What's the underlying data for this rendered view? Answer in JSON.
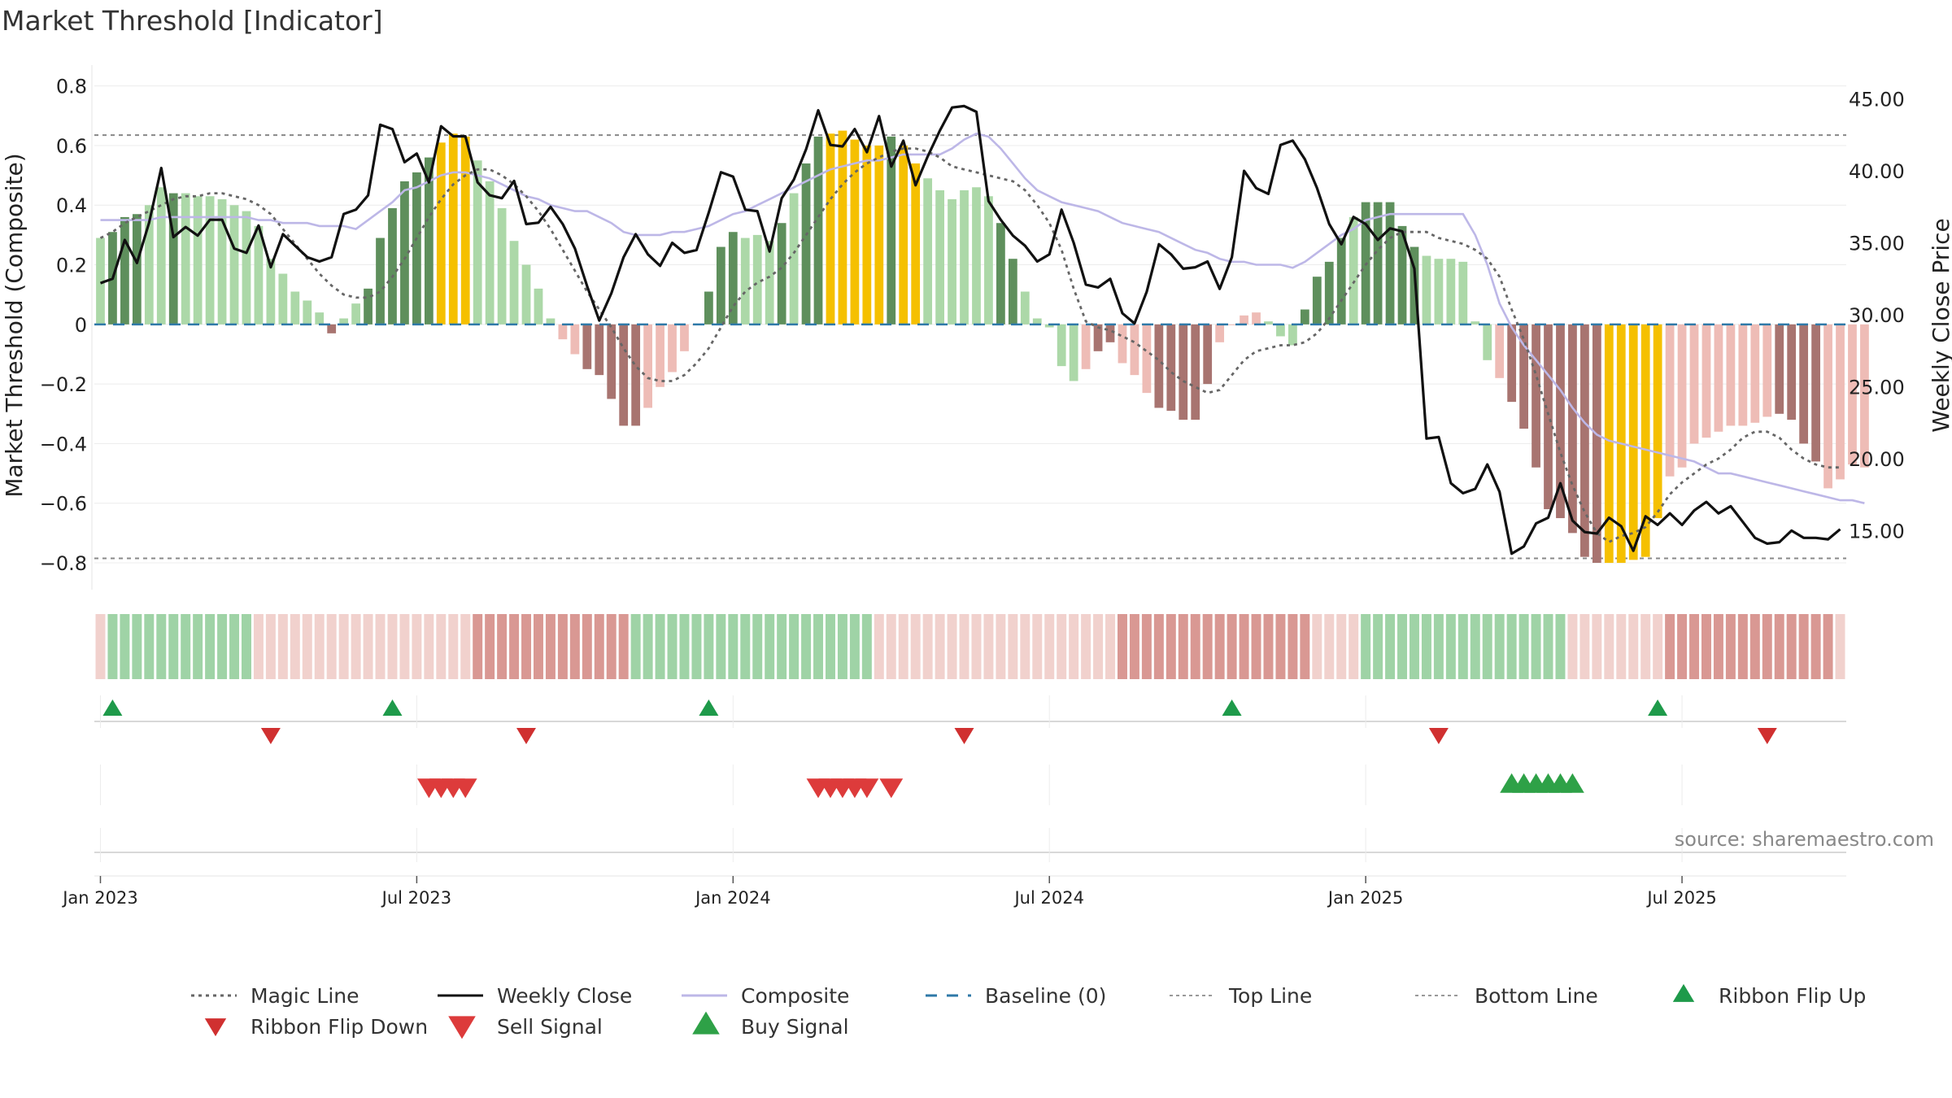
{
  "chart_data": {
    "type": "bar",
    "title": "Market Threshold [Indicator]",
    "ylabel_left": "Market Threshold (Composite)",
    "ylabel_right": "Weekly Close Price",
    "ylim_left": [
      -0.89,
      0.87
    ],
    "ylim_right": [
      10.9,
      47.35
    ],
    "yticks_left": [
      {
        "v": 0.8,
        "label": "0.8"
      },
      {
        "v": 0.6,
        "label": "0.6"
      },
      {
        "v": 0.4,
        "label": "0.4"
      },
      {
        "v": 0.2,
        "label": "0.2"
      },
      {
        "v": 0,
        "label": "0"
      },
      {
        "v": -0.2,
        "label": "−0.2"
      },
      {
        "v": -0.4,
        "label": "−0.4"
      },
      {
        "v": -0.6,
        "label": "−0.6"
      },
      {
        "v": -0.8,
        "label": "−0.8"
      }
    ],
    "yticks_right": [
      {
        "v": 45,
        "label": "45.00"
      },
      {
        "v": 40,
        "label": "40.00"
      },
      {
        "v": 35,
        "label": "35.00"
      },
      {
        "v": 30,
        "label": "30.00"
      },
      {
        "v": 25,
        "label": "25.00"
      },
      {
        "v": 20,
        "label": "20.00"
      },
      {
        "v": 15,
        "label": "15.00"
      }
    ],
    "x_ticks": [
      {
        "week": 1,
        "label": "Jan 2023"
      },
      {
        "week": 27,
        "label": "Jul 2023"
      },
      {
        "week": 53,
        "label": "Jan 2024"
      },
      {
        "week": 79,
        "label": "Jul 2024"
      },
      {
        "week": 105,
        "label": "Jan 2025"
      },
      {
        "week": 131,
        "label": "Jul 2025"
      }
    ],
    "weeks": 144,
    "top_line": 0.635,
    "bottom_line": -0.785,
    "composite_values": [
      0.29,
      0.31,
      0.36,
      0.37,
      0.4,
      0.46,
      0.44,
      0.44,
      0.43,
      0.43,
      0.42,
      0.4,
      0.38,
      0.33,
      0.22,
      0.17,
      0.11,
      0.08,
      0.04,
      -0.03,
      0.02,
      0.07,
      0.12,
      0.29,
      0.39,
      0.48,
      0.51,
      0.56,
      0.61,
      0.64,
      0.63,
      0.55,
      0.48,
      0.39,
      0.28,
      0.2,
      0.12,
      0.02,
      -0.05,
      -0.1,
      -0.15,
      -0.17,
      -0.25,
      -0.34,
      -0.34,
      -0.28,
      -0.21,
      -0.16,
      -0.09,
      0,
      0.11,
      0.26,
      0.31,
      0.29,
      0.3,
      0.28,
      0.34,
      0.44,
      0.54,
      0.63,
      0.64,
      0.65,
      0.62,
      0.6,
      0.6,
      0.63,
      0.6,
      0.54,
      0.49,
      0.45,
      0.42,
      0.45,
      0.46,
      0.43,
      0.34,
      0.22,
      0.11,
      0.02,
      -0.01,
      -0.14,
      -0.19,
      -0.15,
      -0.09,
      -0.06,
      -0.13,
      -0.17,
      -0.23,
      -0.28,
      -0.29,
      -0.32,
      -0.32,
      -0.2,
      -0.06,
      0,
      0.03,
      0.04,
      0.01,
      -0.04,
      -0.07,
      0.05,
      0.16,
      0.21,
      0.29,
      0.36,
      0.41,
      0.41,
      0.41,
      0.33,
      0.26,
      0.23,
      0.22,
      0.22,
      0.21,
      0.01,
      -0.12,
      -0.18,
      -0.26,
      -0.35,
      -0.48,
      -0.62,
      -0.65,
      -0.7,
      -0.78,
      -0.8,
      -0.8,
      -0.8,
      -0.79,
      -0.78,
      -0.65,
      -0.51,
      -0.48,
      -0.4,
      -0.38,
      -0.36,
      -0.34,
      -0.34,
      -0.33,
      -0.31,
      -0.3,
      -0.32,
      -0.4,
      -0.46,
      -0.55,
      -0.52,
      -0.47,
      -0.48
    ],
    "bar_category_codes": "LDDDLLDLLLLLLLLLLLLRLLDDDDDDYYYLLLLLLLWWRRRRRWWWWWDDDLLLDLDDYYYYYDYYLLLLLLDDLLLLLWRRWWWRRRRRWWWWLLLDDDDLDDDDDLLLLLLWRRRRRRRRYYYYYWWWWWWWWWRRRRWWWWRWWW",
    "bar_category_legend": {
      "D": "dark green",
      "L": "light green",
      "R": "dark red",
      "W": "light red",
      "Y": "gold"
    },
    "series": [
      {
        "name": "Weekly Close",
        "axis": "right",
        "values": [
          32.2,
          32.5,
          35.2,
          33.6,
          36.4,
          40.2,
          35.4,
          36.1,
          35.5,
          36.6,
          36.6,
          34.6,
          34.3,
          36.2,
          33.3,
          35.6,
          34.8,
          34,
          33.7,
          34,
          37,
          37.3,
          38.3,
          43.2,
          42.9,
          40.6,
          41.2,
          39.2,
          43.1,
          42.4,
          42.4,
          39.2,
          38.3,
          38.1,
          39.3,
          36.3,
          36.4,
          37.5,
          36.3,
          34.6,
          32,
          29.6,
          31.5,
          34,
          35.6,
          34.2,
          33.4,
          35,
          34.3,
          34.5,
          37.1,
          39.9,
          39.6,
          37.3,
          37.2,
          34.4,
          38.1,
          39.4,
          41.5,
          44.2,
          41.8,
          41.7,
          42.9,
          41.3,
          43.8,
          40.3,
          42.1,
          39,
          41,
          42.8,
          44.4,
          44.5,
          44.1,
          37.9,
          36.6,
          35.5,
          34.8,
          33.7,
          34.2,
          37.3,
          35,
          32.1,
          31.9,
          32.5,
          30.1,
          29.4,
          31.6,
          34.9,
          34.2,
          33.2,
          33.3,
          33.7,
          31.8,
          34,
          40,
          38.8,
          38.4,
          41.8,
          42.1,
          40.8,
          38.8,
          36.3,
          34.9,
          36.8,
          36.3,
          35.2,
          36,
          35.8,
          33.2,
          21.4,
          21.5,
          18.3,
          17.6,
          17.9,
          19.6,
          17.7,
          13.4,
          13.9,
          15.5,
          15.9,
          18.3,
          15.7,
          14.9,
          14.8,
          15.9,
          15.3,
          13.6,
          16,
          15.4,
          16.2,
          15.4,
          16.4,
          17,
          16.2,
          16.7,
          15.6,
          14.5,
          14.1,
          14.2,
          15,
          14.5,
          14.5,
          14.4,
          15.1
        ],
        "axis_note": "week index 1..144 maps to the x axis ticks"
      },
      {
        "name": "Composite",
        "axis": "left",
        "values": [
          0.35,
          0.35,
          0.35,
          0.35,
          0.35,
          0.36,
          0.36,
          0.36,
          0.36,
          0.36,
          0.36,
          0.36,
          0.36,
          0.35,
          0.35,
          0.34,
          0.34,
          0.34,
          0.33,
          0.33,
          0.33,
          0.32,
          0.35,
          0.38,
          0.41,
          0.45,
          0.46,
          0.48,
          0.5,
          0.51,
          0.51,
          0.5,
          0.49,
          0.47,
          0.45,
          0.43,
          0.42,
          0.4,
          0.39,
          0.38,
          0.38,
          0.36,
          0.34,
          0.31,
          0.3,
          0.3,
          0.3,
          0.31,
          0.31,
          0.32,
          0.33,
          0.35,
          0.37,
          0.38,
          0.4,
          0.42,
          0.44,
          0.46,
          0.48,
          0.5,
          0.52,
          0.53,
          0.54,
          0.55,
          0.55,
          0.56,
          0.57,
          0.57,
          0.57,
          0.57,
          0.59,
          0.62,
          0.64,
          0.63,
          0.59,
          0.54,
          0.49,
          0.45,
          0.43,
          0.41,
          0.4,
          0.39,
          0.38,
          0.36,
          0.34,
          0.33,
          0.32,
          0.31,
          0.29,
          0.27,
          0.25,
          0.24,
          0.22,
          0.21,
          0.21,
          0.2,
          0.2,
          0.2,
          0.19,
          0.21,
          0.24,
          0.27,
          0.3,
          0.32,
          0.35,
          0.36,
          0.37,
          0.37,
          0.37,
          0.37,
          0.37,
          0.37,
          0.37,
          0.3,
          0.2,
          0.07,
          -0.01,
          -0.07,
          -0.12,
          -0.17,
          -0.22,
          -0.28,
          -0.33,
          -0.37,
          -0.39,
          -0.4,
          -0.41,
          -0.42,
          -0.43,
          -0.44,
          -0.45,
          -0.46,
          -0.48,
          -0.5,
          -0.5,
          -0.51,
          -0.52,
          -0.53,
          -0.54,
          -0.55,
          -0.56,
          -0.57,
          -0.58,
          -0.59,
          -0.59,
          -0.6
        ]
      },
      {
        "name": "Magic Line",
        "axis": "left",
        "values": [
          0.29,
          0.31,
          0.34,
          0.36,
          0.38,
          0.4,
          0.42,
          0.43,
          0.43,
          0.44,
          0.44,
          0.43,
          0.42,
          0.4,
          0.37,
          0.32,
          0.27,
          0.22,
          0.17,
          0.13,
          0.1,
          0.09,
          0.09,
          0.11,
          0.16,
          0.22,
          0.29,
          0.36,
          0.42,
          0.47,
          0.5,
          0.52,
          0.52,
          0.5,
          0.47,
          0.43,
          0.38,
          0.32,
          0.25,
          0.18,
          0.11,
          0.05,
          -0.01,
          -0.08,
          -0.14,
          -0.18,
          -0.19,
          -0.19,
          -0.17,
          -0.13,
          -0.08,
          -0.01,
          0.06,
          0.11,
          0.14,
          0.16,
          0.19,
          0.24,
          0.3,
          0.36,
          0.42,
          0.47,
          0.51,
          0.54,
          0.56,
          0.58,
          0.59,
          0.59,
          0.58,
          0.56,
          0.53,
          0.52,
          0.51,
          0.5,
          0.49,
          0.48,
          0.45,
          0.4,
          0.34,
          0.25,
          0.12,
          0.01,
          -0.01,
          -0.02,
          -0.04,
          -0.06,
          -0.09,
          -0.12,
          -0.16,
          -0.19,
          -0.21,
          -0.23,
          -0.22,
          -0.17,
          -0.12,
          -0.09,
          -0.08,
          -0.07,
          -0.07,
          -0.06,
          -0.03,
          0.02,
          0.08,
          0.14,
          0.2,
          0.25,
          0.29,
          0.31,
          0.31,
          0.31,
          0.29,
          0.28,
          0.27,
          0.25,
          0.22,
          0.16,
          0.05,
          -0.05,
          -0.17,
          -0.3,
          -0.43,
          -0.54,
          -0.63,
          -0.7,
          -0.73,
          -0.71,
          -0.7,
          -0.68,
          -0.63,
          -0.57,
          -0.53,
          -0.5,
          -0.47,
          -0.45,
          -0.42,
          -0.38,
          -0.36,
          -0.36,
          -0.38,
          -0.42,
          -0.45,
          -0.47,
          -0.48,
          -0.48
        ]
      },
      {
        "name": "Baseline (0)",
        "axis": "left",
        "values": [
          0
        ]
      }
    ],
    "ribbon_codes": "WLLLLLLLLLLLLWWWWWWWWWWWWWWWWWWRRRRRRRRRRRRRLLLLLLLLLLLLLLLLLLLLWWWWWWWWWWWWWWWWWWWWRRRRRRRRRRRRRRRRWWWWLLLLLLLLLLLLLLLLLWWWWWWWWRRRRRRRRRRRRRRWLLLLLLLLLLWWWWWWWWWW",
    "ribbon_legend": {
      "L": "green ribbon",
      "W": "faded ribbon",
      "R": "red ribbon"
    },
    "ribbon_flip_up_weeks": [
      2,
      25,
      51,
      94,
      129
    ],
    "ribbon_flip_down_weeks": [
      15,
      36,
      72,
      111,
      138
    ],
    "sell_signal_weeks": [
      28,
      29,
      30,
      31,
      60,
      61,
      62,
      63,
      64,
      66
    ],
    "buy_signal_weeks": [
      117,
      118,
      119,
      120,
      121,
      122
    ],
    "legend": [
      {
        "name": "Magic Line",
        "style": "dotted-line"
      },
      {
        "name": "Weekly Close",
        "style": "solid-line"
      },
      {
        "name": "Composite",
        "style": "solid-lavender-line"
      },
      {
        "name": "Baseline (0)",
        "style": "dashed-blue-line"
      },
      {
        "name": "Top Line",
        "style": "dotted-grey-line"
      },
      {
        "name": "Bottom Line",
        "style": "dotted-grey-line"
      },
      {
        "name": "Ribbon Flip Up",
        "style": "green-up-triangle"
      },
      {
        "name": "Ribbon Flip Down",
        "style": "red-down-triangle"
      },
      {
        "name": "Sell Signal",
        "style": "red-down-triangle-large"
      },
      {
        "name": "Buy Signal",
        "style": "green-up-triangle-large"
      }
    ],
    "source": "source: sharemaestro.com"
  },
  "colors": {
    "dark_green": "#5e8f5c",
    "light_green": "#acd8a8",
    "dark_red": "#a87470",
    "light_red": "#eebcb6",
    "gold": "#f5c000",
    "close_line": "#111111",
    "composite_line": "#bdb7e7",
    "magic_line": "#666666",
    "baseline": "#2f79a8",
    "threshold_line": "#888888",
    "flip_up": "#1e9a4a",
    "flip_down": "#d03030",
    "sell": "#dd3b3b",
    "buy": "#2ea147",
    "axis_text": "#222222",
    "source_text": "#888888"
  }
}
